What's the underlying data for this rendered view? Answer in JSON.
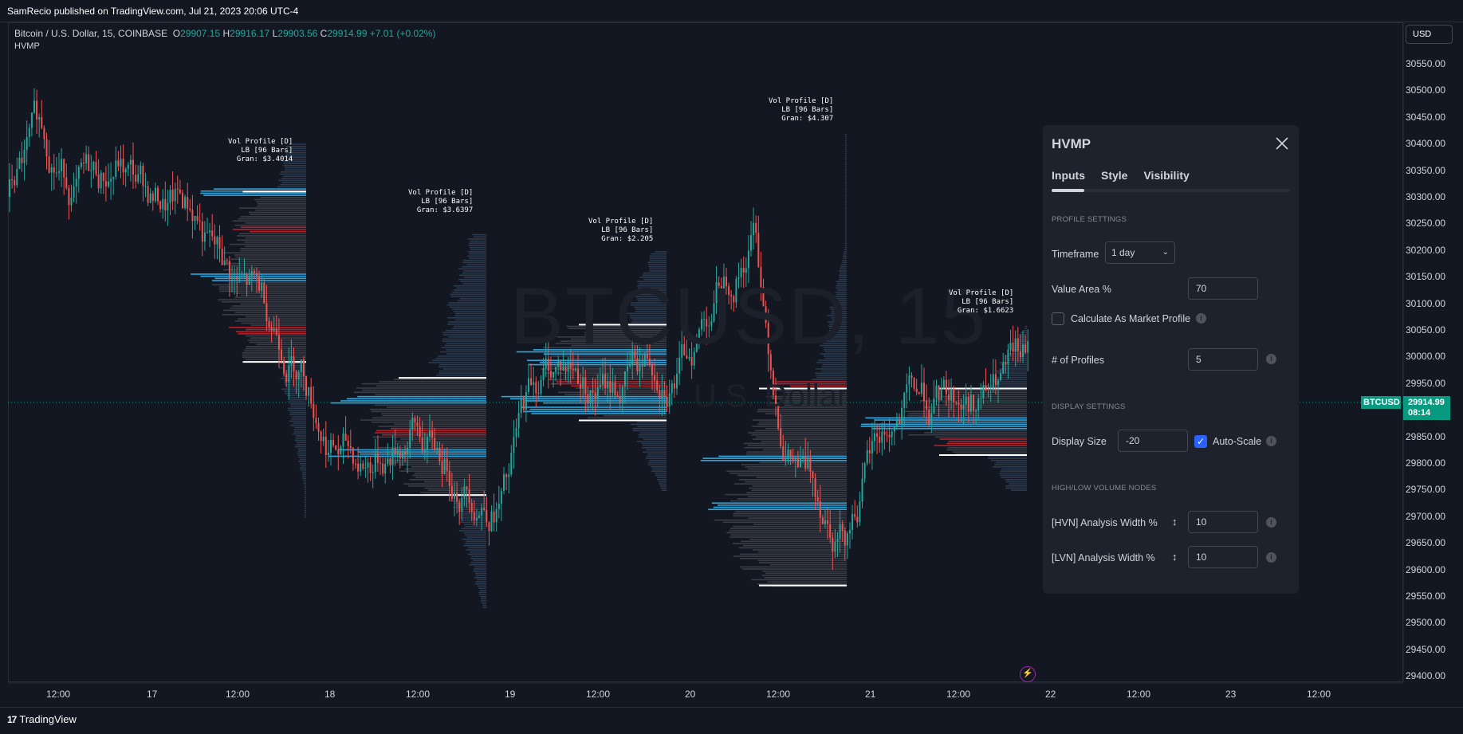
{
  "header": {
    "publisher": "SamRecio published on TradingView.com, Jul 21, 2023 20:06 UTC-4"
  },
  "legend": {
    "symbol": "Bitcoin / U.S. Dollar, 15, COINBASE",
    "o_label": "O",
    "o_value": "29907.15",
    "h_label": "H",
    "h_value": "29916.17",
    "l_label": "L",
    "l_value": "29903.56",
    "c_label": "C",
    "c_value": "29914.99",
    "change": "+7.01 (+0.02%)",
    "indicator": "HVMP"
  },
  "watermark": {
    "big": "BTCUSD, 15",
    "small": "U.S. Dollar"
  },
  "currency_button": "USD",
  "price_badge": {
    "ticker": "BTCUSD",
    "price": "29914.99",
    "countdown": "08:14"
  },
  "y_axis": [
    "30550.00",
    "30500.00",
    "30450.00",
    "30400.00",
    "30350.00",
    "30300.00",
    "30250.00",
    "30200.00",
    "30150.00",
    "30100.00",
    "30050.00",
    "30000.00",
    "29950.00",
    "29900.00",
    "29850.00",
    "29800.00",
    "29750.00",
    "29700.00",
    "29650.00",
    "29600.00",
    "29550.00",
    "29500.00",
    "29450.00",
    "29400.00"
  ],
  "x_axis": [
    "12:00",
    "17",
    "12:00",
    "18",
    "12:00",
    "19",
    "12:00",
    "20",
    "12:00",
    "21",
    "12:00",
    "22",
    "12:00",
    "23",
    "12:00"
  ],
  "vol_profiles": [
    {
      "l1": "Vol Profile [D]",
      "l2": "LB [96 Bars]",
      "l3": "Gran: $3.4014"
    },
    {
      "l1": "Vol Profile [D]",
      "l2": "LB [96 Bars]",
      "l3": "Gran: $3.6397"
    },
    {
      "l1": "Vol Profile [D]",
      "l2": "LB [96 Bars]",
      "l3": "Gran: $2.205"
    },
    {
      "l1": "Vol Profile [D]",
      "l2": "LB [96 Bars]",
      "l3": "Gran: $4.307"
    },
    {
      "l1": "Vol Profile [D]",
      "l2": "LB [96 Bars]",
      "l3": "Gran: $1.6623"
    }
  ],
  "brand": "TradingView",
  "colors": {
    "up": "#26a69a",
    "down": "#ef5350",
    "hvn": "#29a8e0",
    "lvn": "#b2202a",
    "accent": "#2962ff",
    "badge": "#089981"
  },
  "panel": {
    "title": "HVMP",
    "tabs": [
      "Inputs",
      "Style",
      "Visibility"
    ],
    "profile_settings": "PROFILE SETTINGS",
    "timeframe_label": "Timeframe",
    "timeframe_value": "1 day",
    "value_area_label": "Value Area %",
    "value_area_value": "70",
    "market_profile_label": "Calculate As Market Profile",
    "profiles_label": "# of Profiles",
    "profiles_value": "5",
    "display_settings": "DISPLAY SETTINGS",
    "display_size_label": "Display Size",
    "display_size_value": "-20",
    "auto_scale_label": "Auto-Scale",
    "hl_nodes": "HIGH/LOW VOLUME NODES",
    "hvn_label": "[HVN] Analysis Width %",
    "hvn_value": "10",
    "lvn_label": "[LVN]  Analysis Width %",
    "lvn_value": "10"
  }
}
